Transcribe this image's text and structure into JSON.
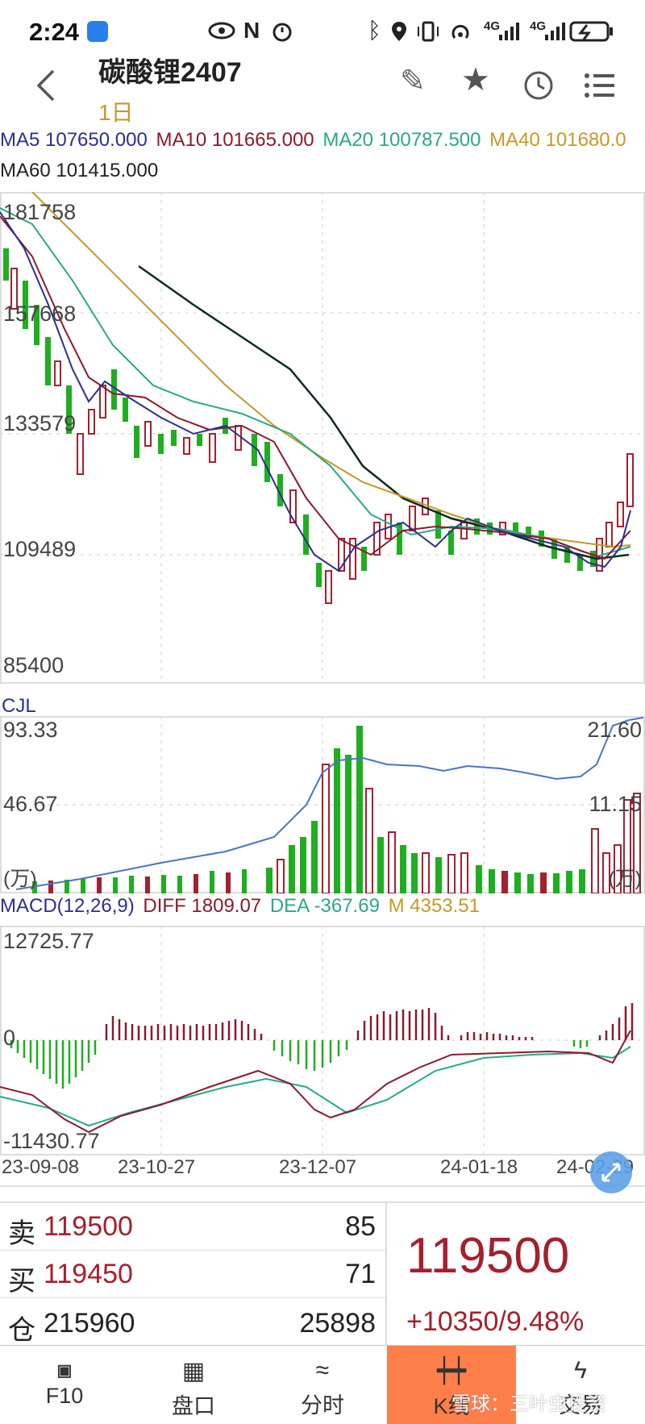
{
  "status": {
    "time": "2:24",
    "network_4g_1": "4G",
    "network_4g_2": "4G"
  },
  "header": {
    "title": "碳酸锂2407",
    "period": "1日"
  },
  "ma": {
    "ma5": "MA5 107650.000",
    "ma10": "MA10 101665.000",
    "ma20": "MA20 100787.500",
    "ma40": "MA40 101680.0",
    "ma60": "MA60 101415.000"
  },
  "kline": {
    "y_labels": [
      "181758",
      "157668",
      "133579",
      "109489",
      "85400"
    ]
  },
  "cjl": {
    "label": "CJL",
    "top": "93.33",
    "mid": "46.67",
    "unit_left": "(万)",
    "right_top": "21.60",
    "right_mid": "11.15",
    "unit_right": "(万)"
  },
  "macd": {
    "header_name": "MACD(12,26,9)",
    "diff": "DIFF 1809.07",
    "dea": "DEA -367.69",
    "m": "M 4353.51",
    "top": "12725.77",
    "zero": "0",
    "bottom": "-11430.77"
  },
  "dates": [
    "23-09-08",
    "23-10-27",
    "23-12-07",
    "24-01-18",
    "24-02-29"
  ],
  "quote": {
    "sell_label": "卖",
    "sell_price": "119500",
    "sell_qty": "85",
    "buy_label": "买",
    "buy_price": "119450",
    "buy_qty": "71",
    "oi_label": "仓",
    "oi_value": "215960",
    "oi_change": "25898",
    "last_price": "119500",
    "change": "+10350/9.48%"
  },
  "nav": [
    {
      "icon": "f10-icon",
      "label": "F10"
    },
    {
      "icon": "grid-icon",
      "label": "盘口"
    },
    {
      "icon": "timeshare-icon",
      "label": "分时"
    },
    {
      "icon": "candlestick-icon",
      "label": "K线"
    },
    {
      "icon": "lightning-icon",
      "label": "交易"
    }
  ],
  "watermark": "雪球：三叶虫投资",
  "colors": {
    "up": "#a4202e",
    "down": "#1fae1f",
    "ma5": "#2b2f8f",
    "ma10": "#8b1a2b",
    "ma20": "#2aa888",
    "ma40": "#c49a26",
    "ma60": "#0e2a23",
    "vol_line": "#4a74c4",
    "active_tab": "#ff7f4a"
  }
}
